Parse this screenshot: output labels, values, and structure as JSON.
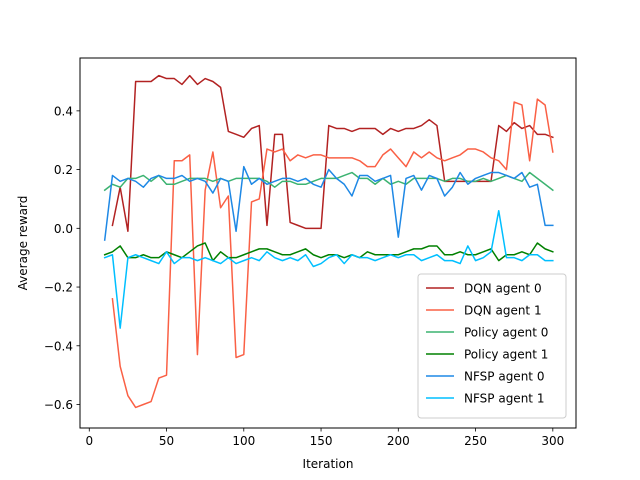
{
  "chart_data": {
    "type": "line",
    "title": "",
    "xlabel": "Iteration",
    "ylabel": "Average reward",
    "xlim": [
      -6,
      315
    ],
    "ylim": [
      -0.68,
      0.58
    ],
    "xticks": [
      0,
      50,
      100,
      150,
      200,
      250,
      300
    ],
    "yticks": [
      -0.6,
      -0.4,
      -0.2,
      0.0,
      0.2,
      0.4
    ],
    "ytick_labels": [
      "−0.6",
      "−0.4",
      "−0.2",
      "0.0",
      "0.2",
      "0.4"
    ],
    "grid": false,
    "legend_position": "lower-right",
    "series": [
      {
        "name": "DQN agent 0",
        "color": "#b22222",
        "x": [
          15,
          20,
          25,
          30,
          35,
          40,
          45,
          50,
          55,
          60,
          65,
          70,
          75,
          80,
          85,
          90,
          95,
          100,
          105,
          110,
          115,
          120,
          125,
          130,
          135,
          140,
          145,
          150,
          155,
          160,
          165,
          170,
          175,
          180,
          185,
          190,
          195,
          200,
          205,
          210,
          215,
          220,
          225,
          230,
          235,
          240,
          245,
          250,
          255,
          260,
          265,
          270,
          275,
          280,
          285,
          290,
          295,
          300
        ],
        "y": [
          0.01,
          0.14,
          -0.01,
          0.5,
          0.5,
          0.5,
          0.52,
          0.51,
          0.51,
          0.49,
          0.52,
          0.49,
          0.51,
          0.5,
          0.48,
          0.33,
          0.32,
          0.31,
          0.34,
          0.35,
          0.01,
          0.32,
          0.32,
          0.02,
          0.01,
          0.0,
          0.0,
          0.0,
          0.35,
          0.34,
          0.34,
          0.33,
          0.34,
          0.34,
          0.34,
          0.32,
          0.34,
          0.33,
          0.34,
          0.34,
          0.35,
          0.37,
          0.35,
          0.16,
          0.16,
          0.16,
          0.16,
          0.16,
          0.16,
          0.16,
          0.35,
          0.33,
          0.36,
          0.34,
          0.35,
          0.32,
          0.32,
          0.31
        ]
      },
      {
        "name": "DQN agent 1",
        "color": "#fa6045",
        "x": [
          15,
          20,
          25,
          30,
          35,
          40,
          45,
          50,
          55,
          60,
          65,
          70,
          75,
          80,
          85,
          90,
          95,
          100,
          105,
          110,
          115,
          120,
          125,
          130,
          135,
          140,
          145,
          150,
          155,
          160,
          165,
          170,
          175,
          180,
          185,
          190,
          195,
          200,
          205,
          210,
          215,
          220,
          225,
          230,
          235,
          240,
          245,
          250,
          255,
          260,
          265,
          270,
          275,
          280,
          285,
          290,
          295,
          300
        ],
        "y": [
          -0.24,
          -0.47,
          -0.57,
          -0.61,
          -0.6,
          -0.59,
          -0.51,
          -0.5,
          0.23,
          0.23,
          0.25,
          -0.43,
          0.13,
          0.26,
          0.07,
          0.11,
          -0.44,
          -0.43,
          0.09,
          0.1,
          0.27,
          0.26,
          0.27,
          0.23,
          0.25,
          0.24,
          0.25,
          0.25,
          0.24,
          0.24,
          0.24,
          0.24,
          0.23,
          0.21,
          0.21,
          0.25,
          0.27,
          0.24,
          0.21,
          0.26,
          0.24,
          0.26,
          0.24,
          0.23,
          0.24,
          0.25,
          0.27,
          0.27,
          0.26,
          0.24,
          0.23,
          0.2,
          0.43,
          0.42,
          0.23,
          0.44,
          0.42,
          0.26
        ]
      },
      {
        "name": "Policy agent 0",
        "color": "#3cb371",
        "x": [
          10,
          15,
          20,
          25,
          30,
          35,
          40,
          45,
          50,
          55,
          60,
          65,
          70,
          75,
          80,
          85,
          90,
          95,
          100,
          105,
          110,
          115,
          120,
          125,
          130,
          135,
          140,
          145,
          150,
          155,
          160,
          165,
          170,
          175,
          180,
          185,
          190,
          195,
          200,
          205,
          210,
          215,
          220,
          225,
          230,
          235,
          240,
          245,
          250,
          255,
          260,
          265,
          270,
          275,
          280,
          285,
          290,
          295,
          300
        ],
        "y": [
          0.13,
          0.15,
          0.14,
          0.17,
          0.17,
          0.18,
          0.16,
          0.18,
          0.15,
          0.15,
          0.16,
          0.17,
          0.17,
          0.17,
          0.16,
          0.17,
          0.16,
          0.17,
          0.17,
          0.17,
          0.17,
          0.16,
          0.14,
          0.16,
          0.16,
          0.15,
          0.15,
          0.16,
          0.17,
          0.17,
          0.17,
          0.18,
          0.19,
          0.17,
          0.17,
          0.15,
          0.17,
          0.15,
          0.16,
          0.15,
          0.17,
          0.17,
          0.17,
          0.17,
          0.16,
          0.17,
          0.17,
          0.16,
          0.16,
          0.17,
          0.16,
          0.17,
          0.18,
          0.17,
          0.16,
          0.19,
          0.17,
          0.15,
          0.13
        ]
      },
      {
        "name": "Policy agent 1",
        "color": "#008000",
        "x": [
          10,
          15,
          20,
          25,
          30,
          35,
          40,
          45,
          50,
          55,
          60,
          65,
          70,
          75,
          80,
          85,
          90,
          95,
          100,
          105,
          110,
          115,
          120,
          125,
          130,
          135,
          140,
          145,
          150,
          155,
          160,
          165,
          170,
          175,
          180,
          185,
          190,
          195,
          200,
          205,
          210,
          215,
          220,
          225,
          230,
          235,
          240,
          245,
          250,
          255,
          260,
          265,
          270,
          275,
          280,
          285,
          290,
          295,
          300
        ],
        "y": [
          -0.09,
          -0.08,
          -0.06,
          -0.1,
          -0.1,
          -0.09,
          -0.1,
          -0.1,
          -0.08,
          -0.09,
          -0.1,
          -0.08,
          -0.06,
          -0.05,
          -0.11,
          -0.08,
          -0.1,
          -0.1,
          -0.09,
          -0.08,
          -0.07,
          -0.07,
          -0.08,
          -0.09,
          -0.09,
          -0.08,
          -0.07,
          -0.09,
          -0.1,
          -0.09,
          -0.09,
          -0.1,
          -0.09,
          -0.1,
          -0.08,
          -0.09,
          -0.09,
          -0.09,
          -0.09,
          -0.08,
          -0.07,
          -0.07,
          -0.06,
          -0.06,
          -0.09,
          -0.09,
          -0.08,
          -0.09,
          -0.09,
          -0.08,
          -0.07,
          -0.11,
          -0.09,
          -0.09,
          -0.08,
          -0.09,
          -0.05,
          -0.07,
          -0.08
        ]
      },
      {
        "name": "NFSP agent 0",
        "color": "#1e88e5",
        "x": [
          10,
          15,
          20,
          25,
          30,
          35,
          40,
          45,
          50,
          55,
          60,
          65,
          70,
          75,
          80,
          85,
          90,
          95,
          100,
          105,
          110,
          115,
          120,
          125,
          130,
          135,
          140,
          145,
          150,
          155,
          160,
          165,
          170,
          175,
          180,
          185,
          190,
          195,
          200,
          205,
          210,
          215,
          220,
          225,
          230,
          235,
          240,
          245,
          250,
          255,
          260,
          265,
          270,
          275,
          280,
          285,
          290,
          295,
          300
        ],
        "y": [
          -0.04,
          0.18,
          0.16,
          0.17,
          0.16,
          0.14,
          0.17,
          0.18,
          0.17,
          0.17,
          0.18,
          0.16,
          0.17,
          0.16,
          0.12,
          0.17,
          0.16,
          -0.01,
          0.21,
          0.15,
          0.17,
          0.15,
          0.16,
          0.17,
          0.17,
          0.16,
          0.17,
          0.15,
          0.14,
          0.2,
          0.17,
          0.15,
          0.11,
          0.18,
          0.18,
          0.16,
          0.17,
          0.18,
          -0.03,
          0.17,
          0.18,
          0.13,
          0.18,
          0.17,
          0.11,
          0.14,
          0.19,
          0.15,
          0.17,
          0.18,
          0.19,
          0.19,
          0.18,
          0.17,
          0.19,
          0.14,
          0.15,
          0.01,
          0.01
        ]
      },
      {
        "name": "NFSP agent 1",
        "color": "#00bfff",
        "x": [
          10,
          15,
          20,
          25,
          30,
          35,
          40,
          45,
          50,
          55,
          60,
          65,
          70,
          75,
          80,
          85,
          90,
          95,
          100,
          105,
          110,
          115,
          120,
          125,
          130,
          135,
          140,
          145,
          150,
          155,
          160,
          165,
          170,
          175,
          180,
          185,
          190,
          195,
          200,
          205,
          210,
          215,
          220,
          225,
          230,
          235,
          240,
          245,
          250,
          255,
          260,
          265,
          270,
          275,
          280,
          285,
          290,
          295,
          300
        ],
        "y": [
          -0.1,
          -0.09,
          -0.34,
          -0.1,
          -0.09,
          -0.1,
          -0.11,
          -0.12,
          -0.08,
          -0.12,
          -0.1,
          -0.1,
          -0.11,
          -0.1,
          -0.11,
          -0.12,
          -0.1,
          -0.12,
          -0.11,
          -0.1,
          -0.11,
          -0.08,
          -0.1,
          -0.11,
          -0.1,
          -0.11,
          -0.09,
          -0.13,
          -0.12,
          -0.1,
          -0.09,
          -0.12,
          -0.09,
          -0.1,
          -0.1,
          -0.11,
          -0.1,
          -0.09,
          -0.1,
          -0.09,
          -0.09,
          -0.11,
          -0.1,
          -0.09,
          -0.11,
          -0.11,
          -0.12,
          -0.06,
          -0.11,
          -0.1,
          -0.08,
          0.06,
          -0.1,
          -0.1,
          -0.11,
          -0.09,
          -0.09,
          -0.11,
          -0.11
        ]
      }
    ]
  }
}
